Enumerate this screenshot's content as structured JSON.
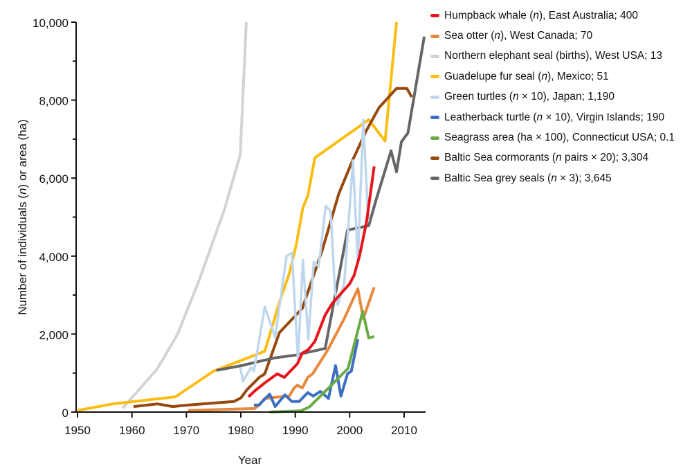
{
  "chart_data": {
    "type": "line",
    "title": "",
    "xlabel": "Year",
    "ylabel": "Number of individuals (n) or area (ha)",
    "ylabel_parts": [
      "Number of individuals (",
      "n",
      ") or area (ha)"
    ],
    "xlim": [
      1950,
      2014
    ],
    "ylim": [
      0,
      10000
    ],
    "x_ticks": [
      1950,
      1960,
      1970,
      1980,
      1990,
      2000,
      2010
    ],
    "x_tick_labels": [
      "1950",
      "1960",
      "1970",
      "1980",
      "1990",
      "2000",
      "2010"
    ],
    "y_ticks": [
      0,
      2000,
      4000,
      6000,
      8000,
      10000
    ],
    "y_tick_labels": [
      "0",
      "2,000",
      "4,000",
      "6,000",
      "8,000",
      "10,000"
    ],
    "y_minor_ticks": [
      1000,
      3000,
      5000,
      7000,
      9000
    ],
    "grid": false,
    "legend_position": "right",
    "series": [
      {
        "name": "Humpback whale (n), East Australia; 400",
        "legend_parts": [
          "Humpback whale (",
          "n",
          "), East Australia; 400"
        ],
        "color": "#e8141b",
        "x": [
          1981.4,
          1982.8,
          1984.7,
          1986.7,
          1988.0,
          1990.4,
          1991.3,
          1992.4,
          1993.6,
          1995.5,
          1996.8,
          2000.0,
          2000.8,
          2001.8,
          2003.1,
          2004.5
        ],
        "y": [
          390,
          570,
          780,
          980,
          890,
          1240,
          1510,
          1600,
          1810,
          2490,
          2790,
          3290,
          3500,
          4000,
          4880,
          6300
        ]
      },
      {
        "name": "Sea otter (n), West Canada; 70",
        "legend_parts": [
          "Sea otter (",
          "n",
          "), West Canada; 70"
        ],
        "color": "#e8883d",
        "x": [
          1970.3,
          1982.5,
          1983.4,
          1984.4,
          1987.9,
          1988.9,
          1989.8,
          1990.4,
          1991.3,
          1992.3,
          1993.2,
          1996.0,
          1999.0,
          2001.5,
          2002.5,
          2004.5
        ],
        "y": [
          40,
          90,
          180,
          350,
          400,
          410,
          620,
          690,
          620,
          890,
          980,
          1600,
          2400,
          3160,
          2400,
          3200
        ]
      },
      {
        "name": "Northern elephant seal (births), West USA; 13",
        "legend_parts": [
          "Northern elephant seal (births), West USA; 13",
          "",
          ""
        ],
        "color": "#d3d3d3",
        "x": [
          1958.3,
          1964.6,
          1968.4,
          1972.4,
          1977.0,
          1979.9,
          1981.0
        ],
        "y": [
          100,
          1100,
          2000,
          3400,
          5200,
          6600,
          10000
        ]
      },
      {
        "name": "Guadelupe fur seal (n), Mexico; 51",
        "legend_parts": [
          "Guadelupe fur seal (",
          "n",
          "), Mexico; 51"
        ],
        "color": "#fbbd12",
        "x": [
          1950.0,
          1956.5,
          1968.0,
          1975.0,
          1984.4,
          1987.2,
          1988.9,
          1990.2,
          1991.4,
          1992.3,
          1993.6,
          2003.5,
          2006.5,
          2008.6
        ],
        "y": [
          40,
          210,
          390,
          1050,
          1560,
          2860,
          3550,
          4300,
          5240,
          5540,
          6520,
          7500,
          6950,
          10000
        ]
      },
      {
        "name": "Green turtles (n × 10), Japan; 1,190",
        "legend_parts": [
          "Green turtles (",
          "n",
          " × 10), Japan; 1,190"
        ],
        "color": "#bfd7ee",
        "x": [
          1979.9,
          1980.4,
          1981.9,
          1982.4,
          1984.4,
          1986.3,
          1988.4,
          1989.4,
          1990.5,
          1991.4,
          1992.4,
          1993.4,
          1994.3,
          1995.6,
          1996.5,
          1997.3,
          1997.8,
          1999.0,
          2000.6,
          2001.5,
          2002.5,
          2003.4
        ],
        "y": [
          1150,
          790,
          1150,
          1050,
          2700,
          1920,
          4000,
          4080,
          1330,
          3900,
          1870,
          3850,
          3730,
          5290,
          5150,
          3100,
          2750,
          3300,
          6450,
          3850,
          7500,
          4900
        ]
      },
      {
        "name": "Leatherback turtle (n × 10), Virgin Islands; 190",
        "legend_parts": [
          "Leatherback turtle (",
          "n",
          " × 10), Virgin Islands; 190"
        ],
        "color": "#3d6fc2",
        "x": [
          1982.4,
          1983.3,
          1985.3,
          1986.3,
          1988.1,
          1989.4,
          1990.7,
          1992.3,
          1993.3,
          1994.6,
          1996.1,
          1997.4,
          1998.4,
          1999.6,
          2000.3,
          2001.5
        ],
        "y": [
          180,
          180,
          460,
          140,
          440,
          270,
          270,
          500,
          410,
          530,
          350,
          1190,
          410,
          980,
          1050,
          1870
        ]
      },
      {
        "name": "Seagrass area (ha × 100), Connecticut USA; 0.1",
        "legend_parts": [
          "Seagrass area (ha × 100), Connecticut USA; 0.1",
          "",
          ""
        ],
        "color": "#6aab44",
        "x": [
          1985.3,
          1991.0,
          1992.6,
          1996.0,
          1999.7,
          2002.4,
          2003.5,
          2004.5
        ],
        "y": [
          0,
          30,
          130,
          600,
          1120,
          2580,
          1900,
          1940
        ]
      },
      {
        "name": "Baltic Sea cormorants (n pairs × 20); 3,304",
        "legend_parts": [
          "Baltic Sea cormorants (",
          "n",
          " pairs × 20); 3,304"
        ],
        "color": "#97480f",
        "x": [
          1960.3,
          1964.7,
          1967.5,
          1970.3,
          1978.7,
          1980.0,
          1981.1,
          1983.4,
          1984.4,
          1987.1,
          1991.3,
          1995.0,
          1998.0,
          2000.6,
          2003.1,
          2005.4,
          2008.6,
          2010.5,
          2011.4
        ],
        "y": [
          140,
          210,
          140,
          180,
          270,
          360,
          570,
          890,
          980,
          2040,
          2660,
          4170,
          5600,
          6480,
          7230,
          7810,
          8300,
          8300,
          8080
        ]
      },
      {
        "name": "Baltic Sea grey seals (n × 3); 3,645",
        "legend_parts": [
          "Baltic Sea grey seals (",
          "n",
          " × 3); 3,645"
        ],
        "color": "#666666",
        "x": [
          1975.5,
          1980.1,
          1983.4,
          1986.3,
          1990.0,
          1995.5,
          1999.6,
          2003.5,
          2004.8,
          2007.6,
          2008.6,
          2009.5,
          2010.7,
          2013.7
        ],
        "y": [
          1070,
          1190,
          1300,
          1390,
          1460,
          1630,
          4670,
          4780,
          5420,
          6700,
          6160,
          6930,
          7160,
          9630
        ]
      }
    ]
  }
}
